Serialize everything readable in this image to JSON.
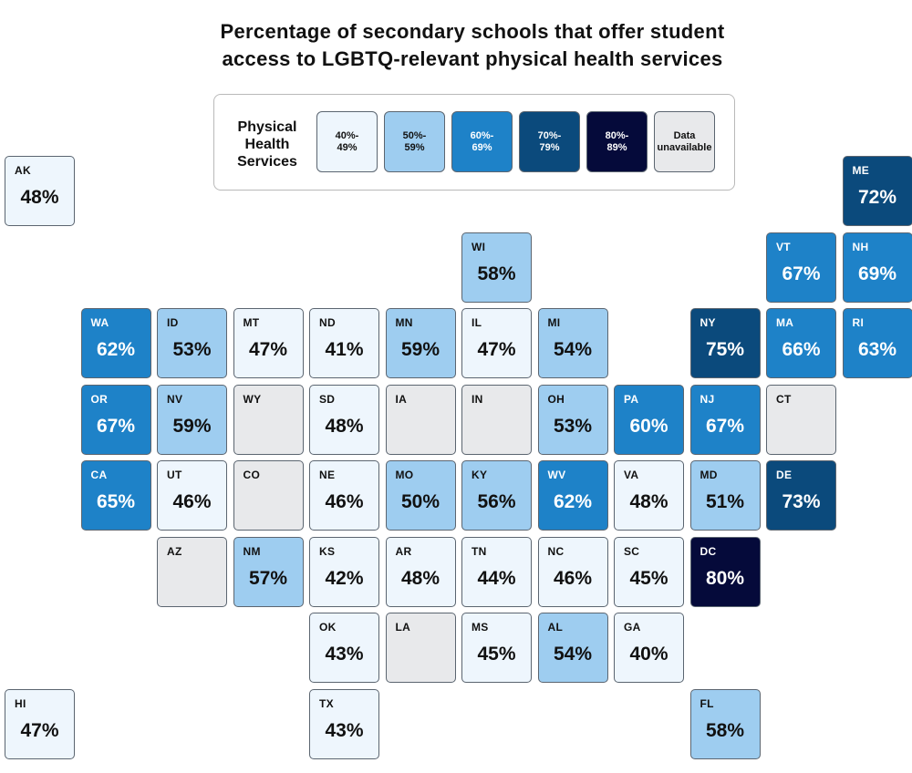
{
  "title_lines": [
    "Percentage of secondary schools that offer student",
    "access to LGBTQ-relevant physical health services"
  ],
  "legend": {
    "title_lines": [
      "Physical",
      "Health",
      "Services"
    ],
    "items": [
      {
        "label": "40%-\n49%",
        "color": "#eef6fd",
        "text_color": "#111111"
      },
      {
        "label": "50%-\n59%",
        "color": "#9ecdf0",
        "text_color": "#111111"
      },
      {
        "label": "60%-\n69%",
        "color": "#1e82c8",
        "text_color": "#ffffff"
      },
      {
        "label": "70%-\n79%",
        "color": "#0b4a7c",
        "text_color": "#ffffff"
      },
      {
        "label": "80%-\n89%",
        "color": "#050a3a",
        "text_color": "#ffffff"
      },
      {
        "label": "Data\nunavailable",
        "color": "#e8e9eb",
        "text_color": "#111111"
      }
    ]
  },
  "states": [
    {
      "abbr": "AK",
      "value": "48%",
      "col": 0,
      "row": 0
    },
    {
      "abbr": "ME",
      "value": "72%",
      "col": 11,
      "row": 0
    },
    {
      "abbr": "WI",
      "value": "58%",
      "col": 6,
      "row": 1
    },
    {
      "abbr": "VT",
      "value": "67%",
      "col": 10,
      "row": 1
    },
    {
      "abbr": "NH",
      "value": "69%",
      "col": 11,
      "row": 1
    },
    {
      "abbr": "WA",
      "value": "62%",
      "col": 1,
      "row": 2
    },
    {
      "abbr": "ID",
      "value": "53%",
      "col": 2,
      "row": 2
    },
    {
      "abbr": "MT",
      "value": "47%",
      "col": 3,
      "row": 2
    },
    {
      "abbr": "ND",
      "value": "41%",
      "col": 4,
      "row": 2
    },
    {
      "abbr": "MN",
      "value": "59%",
      "col": 5,
      "row": 2
    },
    {
      "abbr": "IL",
      "value": "47%",
      "col": 6,
      "row": 2
    },
    {
      "abbr": "MI",
      "value": "54%",
      "col": 7,
      "row": 2
    },
    {
      "abbr": "NY",
      "value": "75%",
      "col": 9,
      "row": 2
    },
    {
      "abbr": "MA",
      "value": "66%",
      "col": 10,
      "row": 2
    },
    {
      "abbr": "RI",
      "value": "63%",
      "col": 11,
      "row": 2
    },
    {
      "abbr": "OR",
      "value": "67%",
      "col": 1,
      "row": 3
    },
    {
      "abbr": "NV",
      "value": "59%",
      "col": 2,
      "row": 3
    },
    {
      "abbr": "WY",
      "value": "",
      "col": 3,
      "row": 3
    },
    {
      "abbr": "SD",
      "value": "48%",
      "col": 4,
      "row": 3
    },
    {
      "abbr": "IA",
      "value": "",
      "col": 5,
      "row": 3
    },
    {
      "abbr": "IN",
      "value": "",
      "col": 6,
      "row": 3
    },
    {
      "abbr": "OH",
      "value": "53%",
      "col": 7,
      "row": 3
    },
    {
      "abbr": "PA",
      "value": "60%",
      "col": 8,
      "row": 3
    },
    {
      "abbr": "NJ",
      "value": "67%",
      "col": 9,
      "row": 3
    },
    {
      "abbr": "CT",
      "value": "",
      "col": 10,
      "row": 3
    },
    {
      "abbr": "CA",
      "value": "65%",
      "col": 1,
      "row": 4
    },
    {
      "abbr": "UT",
      "value": "46%",
      "col": 2,
      "row": 4
    },
    {
      "abbr": "CO",
      "value": "",
      "col": 3,
      "row": 4
    },
    {
      "abbr": "NE",
      "value": "46%",
      "col": 4,
      "row": 4
    },
    {
      "abbr": "MO",
      "value": "50%",
      "col": 5,
      "row": 4
    },
    {
      "abbr": "KY",
      "value": "56%",
      "col": 6,
      "row": 4
    },
    {
      "abbr": "WV",
      "value": "62%",
      "col": 7,
      "row": 4
    },
    {
      "abbr": "VA",
      "value": "48%",
      "col": 8,
      "row": 4
    },
    {
      "abbr": "MD",
      "value": "51%",
      "col": 9,
      "row": 4
    },
    {
      "abbr": "DE",
      "value": "73%",
      "col": 10,
      "row": 4
    },
    {
      "abbr": "AZ",
      "value": "",
      "col": 2,
      "row": 5
    },
    {
      "abbr": "NM",
      "value": "57%",
      "col": 3,
      "row": 5
    },
    {
      "abbr": "KS",
      "value": "42%",
      "col": 4,
      "row": 5
    },
    {
      "abbr": "AR",
      "value": "48%",
      "col": 5,
      "row": 5
    },
    {
      "abbr": "TN",
      "value": "44%",
      "col": 6,
      "row": 5
    },
    {
      "abbr": "NC",
      "value": "46%",
      "col": 7,
      "row": 5
    },
    {
      "abbr": "SC",
      "value": "45%",
      "col": 8,
      "row": 5
    },
    {
      "abbr": "DC",
      "value": "80%",
      "col": 9,
      "row": 5
    },
    {
      "abbr": "OK",
      "value": "43%",
      "col": 4,
      "row": 6
    },
    {
      "abbr": "LA",
      "value": "",
      "col": 5,
      "row": 6
    },
    {
      "abbr": "MS",
      "value": "45%",
      "col": 6,
      "row": 6
    },
    {
      "abbr": "AL",
      "value": "54%",
      "col": 7,
      "row": 6
    },
    {
      "abbr": "GA",
      "value": "40%",
      "col": 8,
      "row": 6
    },
    {
      "abbr": "HI",
      "value": "47%",
      "col": 0,
      "row": 7
    },
    {
      "abbr": "TX",
      "value": "43%",
      "col": 4,
      "row": 7
    },
    {
      "abbr": "FL",
      "value": "58%",
      "col": 9,
      "row": 7
    }
  ]
}
